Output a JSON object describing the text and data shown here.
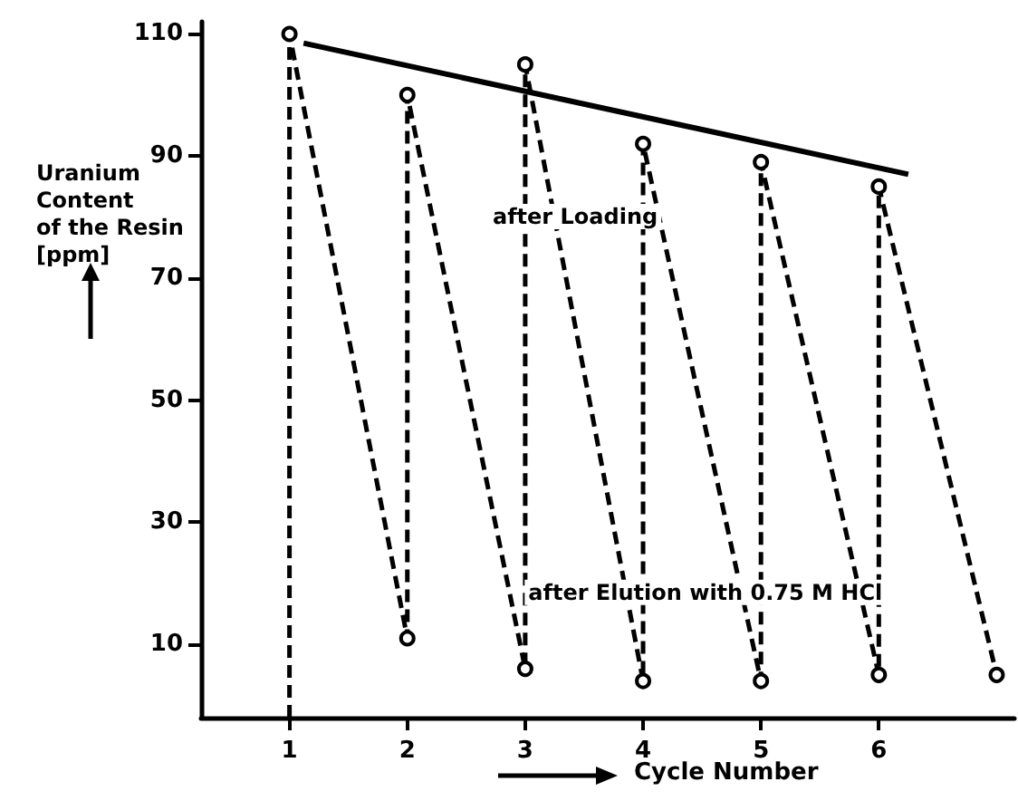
{
  "chart_data": {
    "type": "line",
    "xlabel": "Cycle Number",
    "ylabel": "Uranium\nContent\nof the Resin\n[ppm]",
    "xlim": [
      0.25,
      7.15
    ],
    "xticks": [
      1,
      2,
      3,
      4,
      5,
      6
    ],
    "ylim": [
      -2,
      112
    ],
    "yticks": [
      10,
      30,
      50,
      70,
      90,
      110
    ],
    "series": [
      {
        "color": "#000000",
        "line_style": "dashed",
        "marker": "circle",
        "x": [
          1,
          1,
          2,
          2,
          3,
          3,
          4,
          4,
          5,
          5,
          6,
          6,
          7
        ],
        "values": [
          -2,
          110,
          11,
          100,
          6,
          105,
          4,
          92,
          4,
          89,
          5,
          85,
          5
        ]
      },
      {
        "color": "#000000",
        "line_style": "solid",
        "marker": "none",
        "x": [
          1.12,
          6.25
        ],
        "values": [
          108.5,
          87
        ]
      }
    ],
    "annotations": [
      "after Loading",
      "after Elution with 0.75 M HCl"
    ]
  }
}
